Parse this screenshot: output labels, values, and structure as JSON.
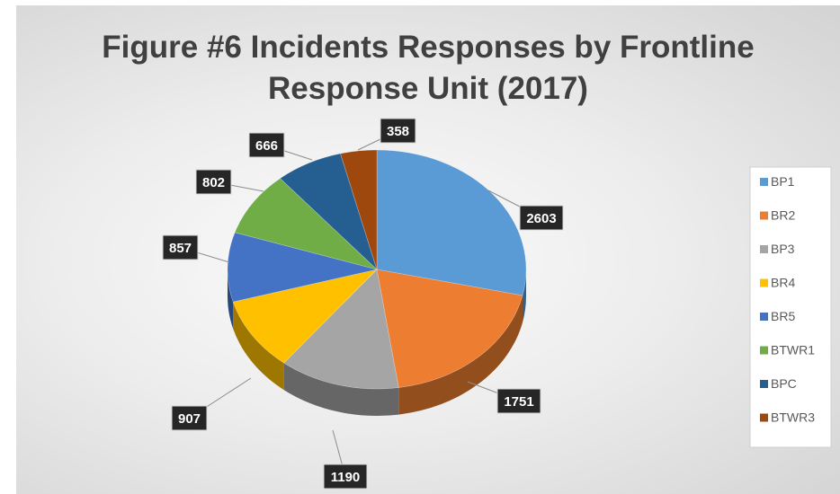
{
  "chart_data": {
    "type": "pie",
    "title_lines": [
      "Figure #6 Incidents Responses by Frontline",
      "Response Unit (2017)"
    ],
    "categories": [
      "BP1",
      "BR2",
      "BP3",
      "BR4",
      "BR5",
      "BTWR1",
      "BPC",
      "BTWR3"
    ],
    "values": [
      2603,
      1751,
      1190,
      907,
      857,
      802,
      666,
      358
    ],
    "colors": [
      "#5b9bd5",
      "#ed7d31",
      "#a5a5a5",
      "#ffc000",
      "#4472c4",
      "#70ad47",
      "#255e91",
      "#9e480e"
    ],
    "legend_position": "right",
    "data_labels": true,
    "style": "3d-pie"
  }
}
